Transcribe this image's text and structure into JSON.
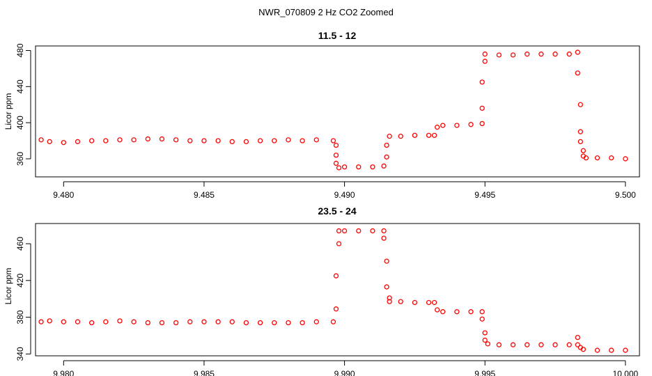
{
  "suptitle": "NWR_070809  2 Hz CO2 Zoomed",
  "colors": {
    "points": "#ff0000",
    "axes": "#000000",
    "background": "#ffffff"
  },
  "chart_data": [
    {
      "type": "scatter",
      "title": "11.5 - 12",
      "ylabel": "Licor ppm",
      "xlabel": "",
      "xlim": [
        9.479,
        9.5005
      ],
      "ylim": [
        340,
        485
      ],
      "xticks": [
        9.48,
        9.485,
        9.49,
        9.495,
        9.5
      ],
      "xtick_labels": [
        "9.480",
        "9.485",
        "9.490",
        "9.495",
        "9.500"
      ],
      "yticks": [
        360,
        400,
        440,
        480
      ],
      "ytick_labels": [
        "360",
        "400",
        "440",
        "480"
      ],
      "series": [
        {
          "points": [
            [
              9.4792,
              381
            ],
            [
              9.4795,
              379
            ],
            [
              9.48,
              378
            ],
            [
              9.4805,
              379
            ],
            [
              9.481,
              380
            ],
            [
              9.4815,
              380
            ],
            [
              9.482,
              381
            ],
            [
              9.4825,
              381
            ],
            [
              9.483,
              382
            ],
            [
              9.4835,
              382
            ],
            [
              9.484,
              381
            ],
            [
              9.4845,
              380
            ],
            [
              9.485,
              380
            ],
            [
              9.4855,
              380
            ],
            [
              9.486,
              379
            ],
            [
              9.4865,
              379
            ],
            [
              9.487,
              380
            ],
            [
              9.4875,
              380
            ],
            [
              9.488,
              381
            ],
            [
              9.4885,
              380
            ],
            [
              9.489,
              381
            ],
            [
              9.4896,
              380
            ],
            [
              9.4897,
              375
            ],
            [
              9.4897,
              364
            ],
            [
              9.4897,
              355
            ],
            [
              9.4898,
              350
            ],
            [
              9.49,
              351
            ],
            [
              9.4905,
              351
            ],
            [
              9.491,
              351
            ],
            [
              9.4914,
              352
            ],
            [
              9.4915,
              362
            ],
            [
              9.4915,
              375
            ],
            [
              9.4916,
              385
            ],
            [
              9.492,
              385
            ],
            [
              9.4925,
              386
            ],
            [
              9.493,
              386
            ],
            [
              9.4932,
              386
            ],
            [
              9.4933,
              395
            ],
            [
              9.4935,
              397
            ],
            [
              9.494,
              397
            ],
            [
              9.4945,
              398
            ],
            [
              9.4949,
              399
            ],
            [
              9.4949,
              416
            ],
            [
              9.4949,
              445
            ],
            [
              9.495,
              468
            ],
            [
              9.495,
              476
            ],
            [
              9.4955,
              475
            ],
            [
              9.496,
              475
            ],
            [
              9.4965,
              476
            ],
            [
              9.497,
              476
            ],
            [
              9.4975,
              476
            ],
            [
              9.498,
              476
            ],
            [
              9.4983,
              478
            ],
            [
              9.4983,
              455
            ],
            [
              9.4984,
              420
            ],
            [
              9.4984,
              390
            ],
            [
              9.4984,
              379
            ],
            [
              9.4985,
              369
            ],
            [
              9.4985,
              363
            ],
            [
              9.4986,
              361
            ],
            [
              9.499,
              361
            ],
            [
              9.4995,
              361
            ],
            [
              9.5,
              360
            ]
          ]
        }
      ]
    },
    {
      "type": "scatter",
      "title": "23.5 - 24",
      "ylabel": "Licor ppm",
      "xlabel": "",
      "xlim": [
        9.979,
        10.0005
      ],
      "ylim": [
        338,
        482
      ],
      "xticks": [
        9.98,
        9.985,
        9.99,
        9.995,
        10.0
      ],
      "xtick_labels": [
        "9.980",
        "9.985",
        "9.990",
        "9.995",
        "10.000"
      ],
      "yticks": [
        340,
        380,
        420,
        460
      ],
      "ytick_labels": [
        "340",
        "380",
        "420",
        "460"
      ],
      "series": [
        {
          "points": [
            [
              9.9792,
              375
            ],
            [
              9.9795,
              376
            ],
            [
              9.98,
              375
            ],
            [
              9.9805,
              375
            ],
            [
              9.981,
              374
            ],
            [
              9.9815,
              375
            ],
            [
              9.982,
              376
            ],
            [
              9.9825,
              375
            ],
            [
              9.983,
              374
            ],
            [
              9.9835,
              374
            ],
            [
              9.984,
              374
            ],
            [
              9.9845,
              375
            ],
            [
              9.985,
              375
            ],
            [
              9.9855,
              375
            ],
            [
              9.986,
              375
            ],
            [
              9.9865,
              374
            ],
            [
              9.987,
              374
            ],
            [
              9.9875,
              374
            ],
            [
              9.988,
              374
            ],
            [
              9.9885,
              374
            ],
            [
              9.989,
              375
            ],
            [
              9.9896,
              375
            ],
            [
              9.9897,
              389
            ],
            [
              9.9897,
              425
            ],
            [
              9.9898,
              460
            ],
            [
              9.9898,
              474
            ],
            [
              9.99,
              474
            ],
            [
              9.9905,
              474
            ],
            [
              9.991,
              474
            ],
            [
              9.9914,
              474
            ],
            [
              9.9914,
              466
            ],
            [
              9.9915,
              441
            ],
            [
              9.9915,
              413
            ],
            [
              9.9916,
              401
            ],
            [
              9.9916,
              397
            ],
            [
              9.992,
              397
            ],
            [
              9.9925,
              396
            ],
            [
              9.993,
              396
            ],
            [
              9.9932,
              396
            ],
            [
              9.9933,
              388
            ],
            [
              9.9935,
              386
            ],
            [
              9.994,
              386
            ],
            [
              9.9945,
              386
            ],
            [
              9.9949,
              386
            ],
            [
              9.9949,
              378
            ],
            [
              9.995,
              363
            ],
            [
              9.995,
              355
            ],
            [
              9.9951,
              351
            ],
            [
              9.9955,
              350
            ],
            [
              9.996,
              350
            ],
            [
              9.9965,
              350
            ],
            [
              9.997,
              350
            ],
            [
              9.9975,
              350
            ],
            [
              9.998,
              350
            ],
            [
              9.9983,
              350
            ],
            [
              9.9983,
              358
            ],
            [
              9.9984,
              347
            ],
            [
              9.9985,
              345
            ],
            [
              9.999,
              344
            ],
            [
              9.9995,
              344
            ],
            [
              10.0,
              344
            ]
          ]
        }
      ]
    }
  ]
}
